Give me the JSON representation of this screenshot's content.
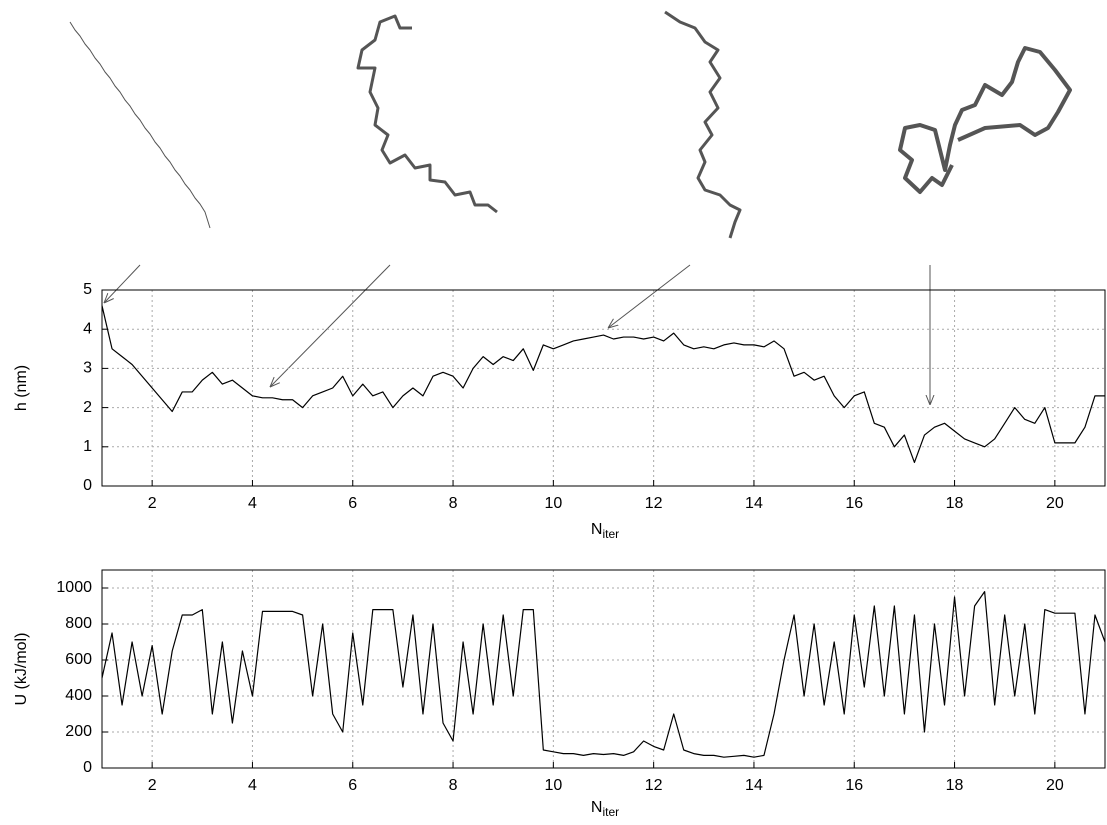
{
  "chart_data": [
    {
      "type": "line",
      "y_label": "h (nm)",
      "x_label": "N",
      "x_label_subscript": "iter",
      "color": "#000000",
      "grid": true,
      "xlim": [
        1,
        21
      ],
      "ylim": [
        0,
        5
      ],
      "xticks": [
        2,
        4,
        6,
        8,
        10,
        12,
        14,
        16,
        18,
        20
      ],
      "yticks": [
        0,
        1,
        2,
        3,
        4,
        5
      ],
      "x": [
        1.0,
        1.2,
        1.4,
        1.6,
        1.8,
        2.0,
        2.2,
        2.4,
        2.6,
        2.8,
        3.0,
        3.2,
        3.4,
        3.6,
        3.8,
        4.0,
        4.2,
        4.4,
        4.6,
        4.8,
        5.0,
        5.2,
        5.4,
        5.6,
        5.8,
        6.0,
        6.2,
        6.4,
        6.6,
        6.8,
        7.0,
        7.2,
        7.4,
        7.6,
        7.8,
        8.0,
        8.2,
        8.4,
        8.6,
        8.8,
        9.0,
        9.2,
        9.4,
        9.6,
        9.8,
        10.0,
        10.2,
        10.4,
        10.6,
        10.8,
        11.0,
        11.2,
        11.4,
        11.6,
        11.8,
        12.0,
        12.2,
        12.4,
        12.6,
        12.8,
        13.0,
        13.2,
        13.4,
        13.6,
        13.8,
        14.0,
        14.2,
        14.4,
        14.6,
        14.8,
        15.0,
        15.2,
        15.4,
        15.6,
        15.8,
        16.0,
        16.2,
        16.4,
        16.6,
        16.8,
        17.0,
        17.2,
        17.4,
        17.6,
        17.8,
        18.0,
        18.2,
        18.4,
        18.6,
        18.8,
        19.0,
        19.2,
        19.4,
        19.6,
        19.8,
        20.0,
        20.2,
        20.4,
        20.6,
        20.8,
        21.0
      ],
      "values": [
        4.6,
        3.5,
        3.3,
        3.1,
        2.8,
        2.5,
        2.2,
        1.9,
        2.4,
        2.4,
        2.7,
        2.9,
        2.6,
        2.7,
        2.5,
        2.3,
        2.25,
        2.25,
        2.2,
        2.2,
        2.0,
        2.3,
        2.4,
        2.5,
        2.8,
        2.3,
        2.6,
        2.3,
        2.4,
        2.0,
        2.3,
        2.5,
        2.3,
        2.8,
        2.9,
        2.8,
        2.5,
        3.0,
        3.3,
        3.1,
        3.3,
        3.2,
        3.5,
        2.95,
        3.6,
        3.5,
        3.6,
        3.7,
        3.75,
        3.8,
        3.85,
        3.75,
        3.8,
        3.8,
        3.75,
        3.8,
        3.7,
        3.9,
        3.6,
        3.5,
        3.55,
        3.5,
        3.6,
        3.65,
        3.6,
        3.6,
        3.55,
        3.7,
        3.5,
        2.8,
        2.9,
        2.7,
        2.8,
        2.3,
        2.0,
        2.3,
        2.4,
        1.6,
        1.5,
        1.0,
        1.3,
        0.6,
        1.3,
        1.5,
        1.6,
        1.4,
        1.2,
        1.1,
        1.0,
        1.2,
        1.6,
        2.0,
        1.7,
        1.6,
        2.0,
        1.1,
        1.1,
        1.1,
        1.5,
        2.3,
        2.3
      ]
    },
    {
      "type": "line",
      "y_label": "U (kJ/mol)",
      "x_label": "N",
      "x_label_subscript": "iter",
      "color": "#000000",
      "grid": true,
      "xlim": [
        1,
        21
      ],
      "ylim": [
        0,
        1100
      ],
      "xticks": [
        2,
        4,
        6,
        8,
        10,
        12,
        14,
        16,
        18,
        20
      ],
      "yticks": [
        0,
        200,
        400,
        600,
        800,
        1000
      ],
      "x": [
        1.0,
        1.2,
        1.4,
        1.6,
        1.8,
        2.0,
        2.2,
        2.4,
        2.6,
        2.8,
        3.0,
        3.2,
        3.4,
        3.6,
        3.8,
        4.0,
        4.2,
        4.4,
        4.6,
        4.8,
        5.0,
        5.2,
        5.4,
        5.6,
        5.8,
        6.0,
        6.2,
        6.4,
        6.6,
        6.8,
        7.0,
        7.2,
        7.4,
        7.6,
        7.8,
        8.0,
        8.2,
        8.4,
        8.6,
        8.8,
        9.0,
        9.2,
        9.4,
        9.6,
        9.8,
        10.0,
        10.2,
        10.4,
        10.6,
        10.8,
        11.0,
        11.2,
        11.4,
        11.6,
        11.8,
        12.0,
        12.2,
        12.4,
        12.6,
        12.8,
        13.0,
        13.2,
        13.4,
        13.6,
        13.8,
        14.0,
        14.2,
        14.4,
        14.6,
        14.8,
        15.0,
        15.2,
        15.4,
        15.6,
        15.8,
        16.0,
        16.2,
        16.4,
        16.6,
        16.8,
        17.0,
        17.2,
        17.4,
        17.6,
        17.8,
        18.0,
        18.2,
        18.4,
        18.6,
        18.8,
        19.0,
        19.2,
        19.4,
        19.6,
        19.8,
        20.0,
        20.2,
        20.4,
        20.6,
        20.8,
        21.0
      ],
      "values": [
        500,
        750,
        350,
        700,
        400,
        680,
        300,
        650,
        850,
        850,
        880,
        300,
        700,
        250,
        650,
        400,
        870,
        870,
        870,
        870,
        850,
        400,
        800,
        300,
        200,
        750,
        350,
        880,
        880,
        880,
        450,
        850,
        300,
        800,
        250,
        150,
        700,
        300,
        800,
        350,
        850,
        400,
        880,
        880,
        100,
        90,
        80,
        80,
        70,
        80,
        75,
        80,
        70,
        90,
        150,
        120,
        100,
        300,
        100,
        80,
        70,
        70,
        60,
        65,
        70,
        60,
        70,
        300,
        600,
        850,
        400,
        800,
        350,
        700,
        300,
        850,
        450,
        900,
        400,
        900,
        300,
        850,
        200,
        800,
        350,
        950,
        400,
        900,
        980,
        350,
        850,
        400,
        800,
        300,
        880,
        860,
        860,
        860,
        300,
        850,
        700
      ]
    }
  ]
}
